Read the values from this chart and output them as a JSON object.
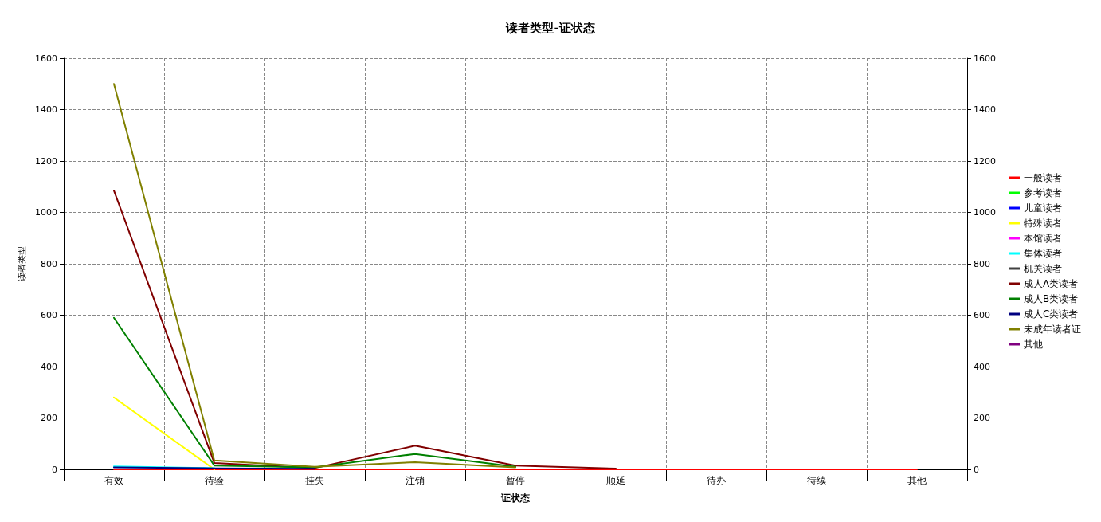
{
  "chart_data": {
    "type": "line",
    "title": "读者类型-证状态",
    "xlabel": "证状态",
    "ylabel": "读者类型",
    "categories": [
      "有效",
      "待验",
      "挂失",
      "注销",
      "暂停",
      "顺延",
      "待办",
      "待续",
      "其他"
    ],
    "series": [
      {
        "name": "一般读者",
        "color": "#ff0000",
        "values": [
          0,
          0,
          0,
          0,
          0,
          0,
          0,
          0,
          0
        ]
      },
      {
        "name": "参考读者",
        "color": "#00ff00",
        "values": [
          null,
          null,
          null,
          null,
          null,
          null,
          null,
          null,
          null
        ]
      },
      {
        "name": "儿童读者",
        "color": "#0000ff",
        "values": [
          null,
          null,
          null,
          null,
          null,
          null,
          null,
          null,
          null
        ]
      },
      {
        "name": "特殊读者",
        "color": "#ffff00",
        "values": [
          280,
          0,
          null,
          null,
          null,
          null,
          null,
          null,
          null
        ]
      },
      {
        "name": "本馆读者",
        "color": "#ff00ff",
        "values": [
          null,
          null,
          null,
          null,
          null,
          null,
          null,
          null,
          null
        ]
      },
      {
        "name": "集体读者",
        "color": "#00ffff",
        "values": [
          12,
          5,
          null,
          null,
          null,
          null,
          null,
          null,
          null
        ]
      },
      {
        "name": "机关读者",
        "color": "#404040",
        "values": [
          null,
          null,
          null,
          null,
          null,
          null,
          null,
          null,
          null
        ]
      },
      {
        "name": "成人A类读者",
        "color": "#800000",
        "values": [
          1085,
          25,
          5,
          92,
          15,
          3,
          null,
          null,
          null
        ]
      },
      {
        "name": "成人B类读者",
        "color": "#008000",
        "values": [
          590,
          15,
          8,
          60,
          10,
          null,
          null,
          null,
          null
        ]
      },
      {
        "name": "成人C类读者",
        "color": "#000080",
        "values": [
          8,
          4,
          2,
          null,
          null,
          null,
          null,
          null,
          null
        ]
      },
      {
        "name": "未成年读者证",
        "color": "#808000",
        "values": [
          1500,
          35,
          10,
          28,
          8,
          null,
          null,
          null,
          null
        ]
      },
      {
        "name": "其他",
        "color": "#800080",
        "values": [
          null,
          null,
          null,
          null,
          null,
          null,
          null,
          null,
          null
        ]
      }
    ],
    "ylim": [
      0,
      1600
    ],
    "yticks": [
      0,
      200,
      400,
      600,
      800,
      1000,
      1200,
      1400,
      1600
    ],
    "y2lim": [
      0,
      1600
    ],
    "y2ticks": [
      0,
      200,
      400,
      600,
      800,
      1000,
      1200,
      1400,
      1600
    ],
    "grid": true,
    "legend": "right",
    "marker": "none",
    "line_style": "solid"
  }
}
